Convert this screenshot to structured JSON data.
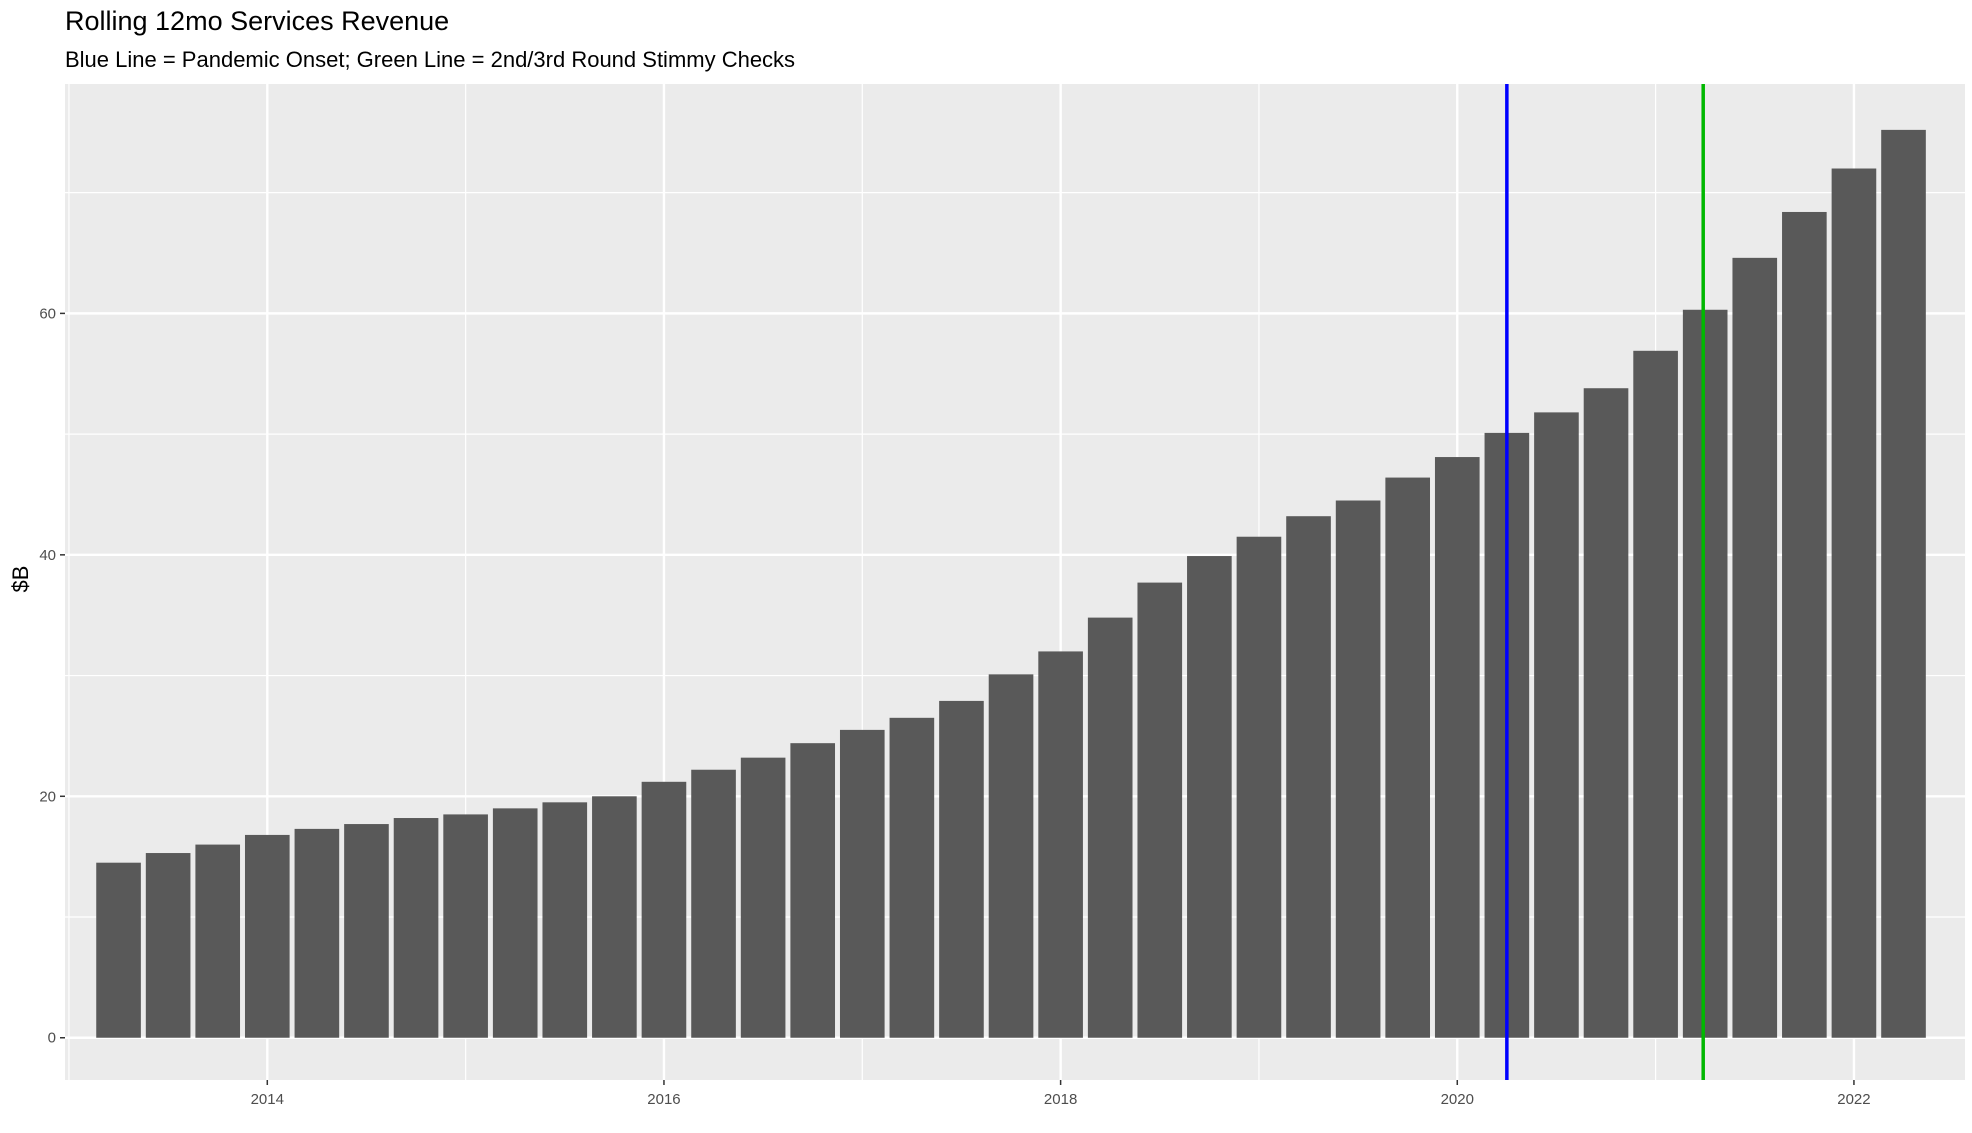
{
  "chart_data": {
    "type": "bar",
    "title": "Rolling 12mo Services Revenue",
    "subtitle": "Blue Line = Pandemic Onset; Green Line = 2nd/3rd Round Stimmy Checks",
    "xlabel": "",
    "ylabel": "$B",
    "xlim": [
      2012.98,
      2022.56
    ],
    "ylim": [
      -3.5,
      79
    ],
    "xticks": [
      2014,
      2016,
      2018,
      2020,
      2022
    ],
    "yticks": [
      0,
      20,
      40,
      60
    ],
    "grid": true,
    "legend": "none",
    "bar_color": "#595959",
    "panel_background": "#ebebeb",
    "x": [
      2013.25,
      2013.5,
      2013.75,
      2014.0,
      2014.25,
      2014.5,
      2014.75,
      2015.0,
      2015.25,
      2015.5,
      2015.75,
      2016.0,
      2016.25,
      2016.5,
      2016.75,
      2017.0,
      2017.25,
      2017.5,
      2017.75,
      2018.0,
      2018.25,
      2018.5,
      2018.75,
      2019.0,
      2019.25,
      2019.5,
      2019.75,
      2020.0,
      2020.25,
      2020.5,
      2020.75,
      2021.0,
      2021.25,
      2021.5,
      2021.75,
      2022.0,
      2022.25
    ],
    "values": [
      14.5,
      15.3,
      16.0,
      16.8,
      17.3,
      17.7,
      18.2,
      18.5,
      19.0,
      19.5,
      20.0,
      21.2,
      22.2,
      23.2,
      24.4,
      25.5,
      26.5,
      27.9,
      30.1,
      32.0,
      34.8,
      37.7,
      39.9,
      41.5,
      43.2,
      44.5,
      46.4,
      48.1,
      50.1,
      51.8,
      53.8,
      56.9,
      60.3,
      64.6,
      68.4,
      72.0,
      75.2
    ],
    "reference_lines": [
      {
        "label": "Pandemic Onset",
        "x": 2020.25,
        "color": "#0000ff"
      },
      {
        "label": "2nd/3rd Round Stimmy Checks",
        "x": 2021.24,
        "color": "#00b800"
      }
    ]
  }
}
